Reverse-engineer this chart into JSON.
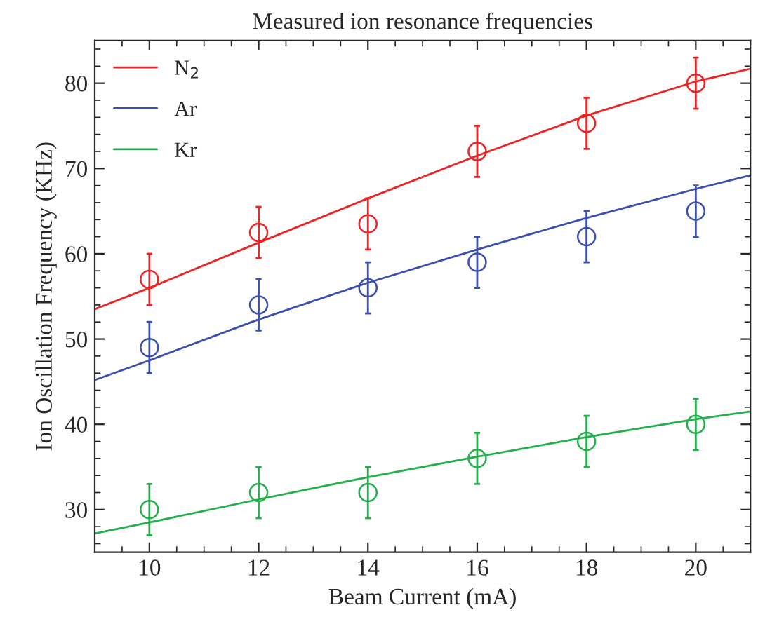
{
  "chart_data": {
    "type": "scatter",
    "title": "Measured ion resonance frequencies",
    "xlabel": "Beam Current (mA)",
    "ylabel": "Ion Oscillation Frequency (KHz)",
    "xlim": [
      9,
      21
    ],
    "xticks": [
      10,
      12,
      14,
      16,
      18,
      20
    ],
    "ylim": [
      25,
      85
    ],
    "yticks": [
      30,
      40,
      50,
      60,
      70,
      80
    ],
    "grid": false,
    "legend": "top left",
    "series": [
      {
        "marker": "circle",
        "color": "#ee2222",
        "x": [
          10,
          12,
          14,
          16,
          18,
          20
        ],
        "values": [
          57,
          62.5,
          63.5,
          72,
          75.3,
          80
        ],
        "errors": [
          3,
          3,
          3,
          3,
          3,
          3
        ]
      },
      {
        "marker": "circle",
        "color": "#3a4fb0",
        "x": [
          10,
          12,
          14,
          16,
          18,
          20
        ],
        "values": [
          49,
          54,
          56,
          59,
          62,
          65
        ],
        "errors": [
          3,
          3,
          3,
          3,
          3,
          3
        ]
      },
      {
        "marker": "circle",
        "color": "#22b04a",
        "x": [
          10,
          12,
          14,
          16,
          18,
          20
        ],
        "values": [
          30,
          32,
          32,
          36,
          38,
          40
        ],
        "errors": [
          3,
          3,
          3,
          3,
          3,
          3
        ]
      },
      {
        "type": "line",
        "marker": "none",
        "name": "N$_{2}$",
        "color": "#ee2222",
        "x": [
          9,
          10,
          12,
          14,
          16,
          18,
          20,
          21
        ],
        "values": [
          53.5,
          56,
          61.3,
          66.5,
          71.5,
          76.2,
          80.2,
          81.7
        ]
      },
      {
        "type": "line",
        "marker": "none",
        "name": "Ar",
        "color": "#3a4fb0",
        "x": [
          9,
          10,
          12,
          14,
          16,
          18,
          20,
          21
        ],
        "values": [
          45.2,
          47.5,
          52.3,
          56.6,
          60.5,
          64.2,
          67.6,
          69.2
        ]
      },
      {
        "type": "line",
        "marker": "none",
        "name": "Kr",
        "color": "#22b04a",
        "x": [
          9,
          10,
          12,
          14,
          16,
          18,
          20,
          21
        ],
        "values": [
          27.2,
          28.5,
          31.2,
          33.8,
          36.2,
          38.5,
          40.6,
          41.5
        ]
      }
    ]
  }
}
